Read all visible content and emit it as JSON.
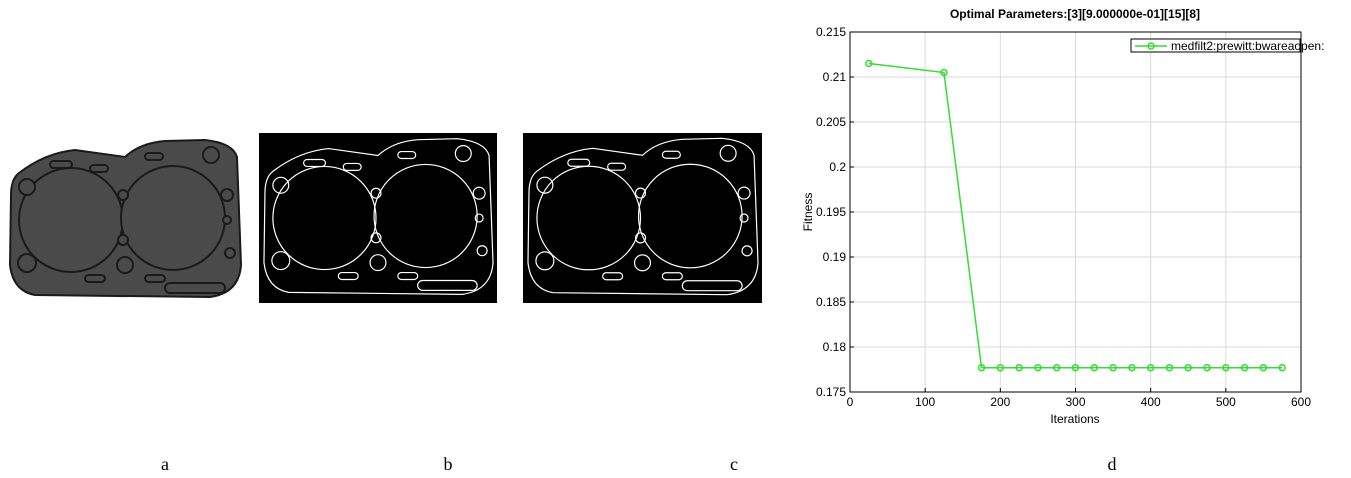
{
  "panel_labels": [
    "a",
    "b",
    "c",
    "d"
  ],
  "chart_data": {
    "type": "line",
    "title": "Optimal Parameters:[3][9.000000e-01][15][8]",
    "xlabel": "Iterations",
    "ylabel": "Fitness",
    "x": [
      25,
      125,
      175,
      200,
      225,
      250,
      275,
      300,
      325,
      350,
      375,
      400,
      425,
      450,
      475,
      500,
      525,
      550,
      575
    ],
    "series": [
      {
        "name": "medfilt2:prewitt:bwareaopen:",
        "color": "#33dd33",
        "values": [
          0.2115,
          0.2105,
          0.1777,
          0.1777,
          0.1777,
          0.1777,
          0.1777,
          0.1777,
          0.1777,
          0.1777,
          0.1777,
          0.1777,
          0.1777,
          0.1777,
          0.1777,
          0.1777,
          0.1777,
          0.1777,
          0.1777
        ]
      }
    ],
    "xlim": [
      0,
      600
    ],
    "xticks": [
      0,
      100,
      200,
      300,
      400,
      500,
      600
    ],
    "ylim": [
      0.175,
      0.215
    ],
    "yticks": [
      0.175,
      0.18,
      0.185,
      0.19,
      0.195,
      0.2,
      0.205,
      0.21,
      0.215
    ],
    "grid": true,
    "legend": "upper right"
  }
}
